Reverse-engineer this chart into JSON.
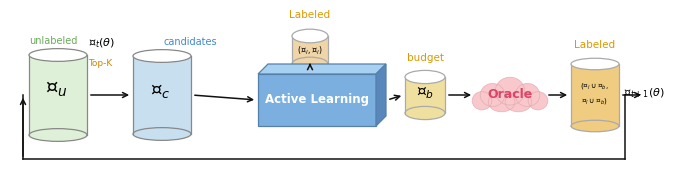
{
  "bg_color": "#ffffff",
  "unlabeled_label": "unlabeled",
  "unlabeled_label_color": "#6aaa5a",
  "candidates_label": "candidates",
  "candidates_label_color": "#4488cc",
  "labeled_label1": "Labeled",
  "labeled_label1_color": "#dd9900",
  "budget_label": "budget",
  "budget_label_color": "#dd9900",
  "labeled_label2": "Labeled",
  "labeled_label2_color": "#dd9900",
  "topk_label": "Top-K",
  "topk_color": "#cc8800",
  "xu_label": "$\\mathcal{X}_u$",
  "xc_label": "$\\mathcal{X}_c$",
  "xb_label": "$\\mathcal{X}_b$",
  "xil_label": "$(\\mathcal{X}_l \\cup \\mathcal{X}_b,$",
  "yil_label": "$\\mathcal{Y}_l \\cup \\mathcal{Y}_b)$",
  "xili_label": "$(\\mathcal{X}_l, \\mathcal{Y}_l)$",
  "ct_label": "$\\mathcal{C}_t(\\theta)$",
  "ct1_label": "$\\mathcal{C}_{t+1}(\\theta)$",
  "al_label": "Active Learning",
  "oracle_label": "Oracle",
  "jar_green_fill": "#dff0d8",
  "jar_green_edge": "#888888",
  "jar_blue_fill": "#c8dff0",
  "jar_blue_edge": "#888888",
  "jar_orange_top_fill": "#f0d5a8",
  "jar_orange_top_edge": "#aaaaaa",
  "jar_budget_fill": "#f0e0a0",
  "jar_budget_edge": "#aaaaaa",
  "jar_result_fill": "#f0cc80",
  "jar_result_edge": "#aaaaaa",
  "box_blue_fill": "#7aafe0",
  "box_top_fill": "#a8d0f0",
  "box_right_fill": "#5888bb",
  "box_edge": "#5580aa",
  "cloud_fill": "#f8c8cc",
  "cloud_edge": "#e0a8aa",
  "arrow_color": "#111111",
  "line_color": "#111111"
}
